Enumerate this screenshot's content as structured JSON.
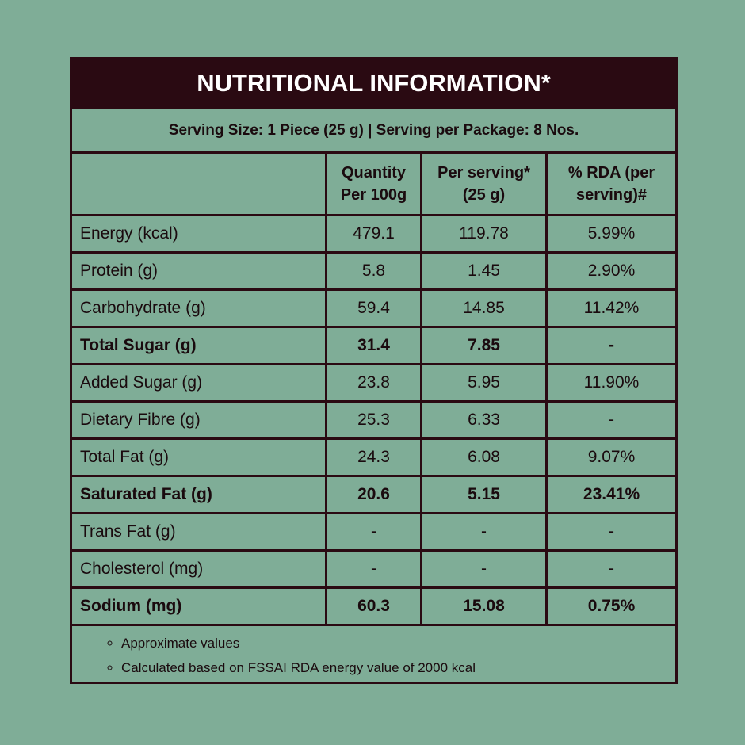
{
  "header": {
    "title": "NUTRITIONAL INFORMATION*",
    "serving": "Serving Size: 1 Piece (25 g) | Serving per Package: 8 Nos."
  },
  "table": {
    "columns": [
      "Quantity Per 100g",
      "Per serving* (25 g)",
      "% RDA (per serving)#"
    ],
    "rows": [
      {
        "cells": [
          "Energy (kcal)",
          "479.1",
          "119.78",
          "5.99%"
        ]
      },
      {
        "cells": [
          "Protein (g)",
          "5.8",
          "1.45",
          "2.90%"
        ]
      },
      {
        "cells": [
          "Carbohydrate (g)",
          "59.4",
          "14.85",
          "11.42%"
        ]
      },
      {
        "cells": [
          "Total Sugar (g)",
          "31.4",
          "7.85",
          "-"
        ],
        "bold": true
      },
      {
        "cells": [
          "Added Sugar (g)",
          "23.8",
          "5.95",
          "11.90%"
        ]
      },
      {
        "cells": [
          "Dietary Fibre (g)",
          "25.3",
          "6.33",
          "-"
        ]
      },
      {
        "cells": [
          "Total Fat (g)",
          "24.3",
          "6.08",
          "9.07%"
        ]
      },
      {
        "cells": [
          "Saturated Fat (g)",
          "20.6",
          "5.15",
          "23.41%"
        ],
        "bold": true
      },
      {
        "cells": [
          "Trans Fat (g)",
          "-",
          "-",
          "-"
        ]
      },
      {
        "cells": [
          "Cholesterol (mg)",
          "-",
          "-",
          "-"
        ]
      },
      {
        "cells": [
          "Sodium (mg)",
          "60.3",
          "15.08",
          "0.75%"
        ],
        "bold": true
      }
    ]
  },
  "notes": [
    "Approximate values",
    "Calculated based on FSSAI RDA energy value of 2000 kcal"
  ]
}
